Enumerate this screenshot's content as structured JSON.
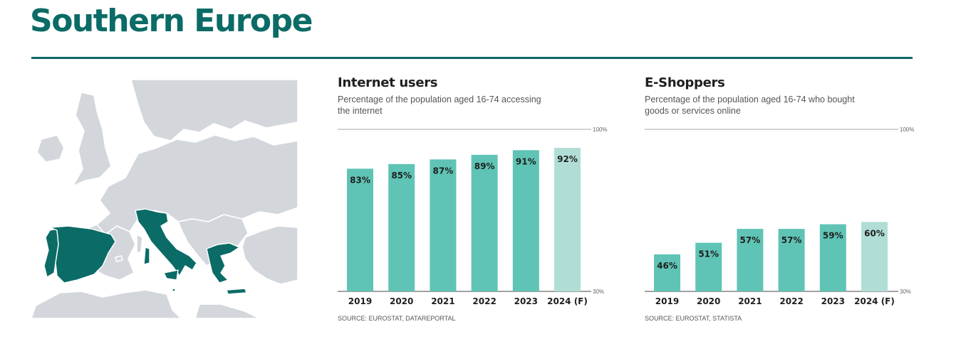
{
  "page": {
    "title": "Southern Europe"
  },
  "colors": {
    "brand": "#0b6b66",
    "bar": "#5fc4b5",
    "bar_forecast": "#b0ded6",
    "map_land": "#d3d7dc",
    "map_highlight": "#0b6b66",
    "map_border": "#ffffff"
  },
  "map": {
    "highlighted_regions": [
      "Portugal",
      "Spain",
      "Italy",
      "Malta",
      "Greece"
    ]
  },
  "chart_data": [
    {
      "type": "bar",
      "title": "Internet users",
      "subtitle": "Percentage of the population aged 16-74 accessing the internet",
      "categories": [
        "2019",
        "2020",
        "2021",
        "2022",
        "2023",
        "2024 (F)"
      ],
      "values": [
        83,
        85,
        87,
        89,
        91,
        92
      ],
      "value_labels": [
        "83%",
        "85%",
        "87%",
        "89%",
        "91%",
        "92%"
      ],
      "forecast_index": 5,
      "ylim": [
        30,
        100
      ],
      "ytick_labels": [
        "100%",
        "30%"
      ],
      "grid": "top and baseline reference lines",
      "source": "SOURCE: EUROSTAT, DATAREPORTAL"
    },
    {
      "type": "bar",
      "title": "E-Shoppers",
      "subtitle": "Percentage of the population aged 16-74 who bought goods or services online",
      "categories": [
        "2019",
        "2020",
        "2021",
        "2022",
        "2023",
        "2024 (F)"
      ],
      "values": [
        46,
        51,
        57,
        57,
        59,
        60
      ],
      "value_labels": [
        "46%",
        "51%",
        "57%",
        "57%",
        "59%",
        "60%"
      ],
      "forecast_index": 5,
      "ylim": [
        30,
        100
      ],
      "ytick_labels": [
        "100%",
        "30%"
      ],
      "grid": "top and baseline reference lines",
      "source": "SOURCE: EUROSTAT, STATISTA"
    }
  ]
}
